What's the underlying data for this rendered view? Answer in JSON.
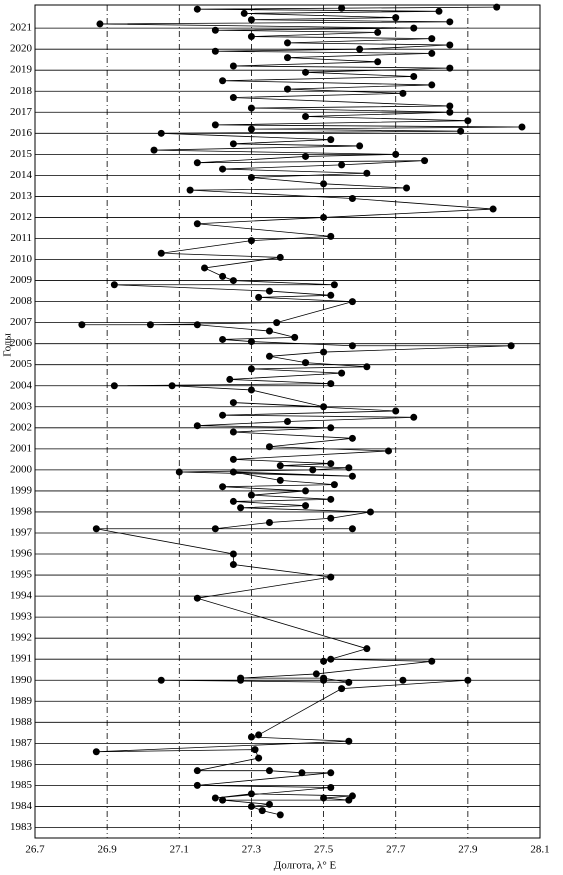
{
  "chart_data": {
    "type": "scatter-line",
    "x_label": "Долгота, λ° E",
    "y_label": "Годы",
    "color": "#000000",
    "x_grid": true,
    "y_grid": true,
    "xlim": [
      26.7,
      28.1
    ],
    "xticks": [
      26.7,
      26.9,
      27.1,
      27.3,
      27.5,
      27.7,
      27.9,
      28.1
    ],
    "ylim": [
      1982.5,
      2022.1
    ],
    "yticks": [
      1983,
      1984,
      1985,
      1986,
      1987,
      1988,
      1989,
      1990,
      1991,
      1992,
      1993,
      1994,
      1995,
      1996,
      1997,
      1998,
      1999,
      2000,
      2001,
      2002,
      2003,
      2004,
      2005,
      2006,
      2007,
      2008,
      2009,
      2010,
      2011,
      2012,
      2013,
      2014,
      2015,
      2016,
      2017,
      2018,
      2019,
      2020,
      2021
    ],
    "x": [
      27.38,
      27.33,
      27.3,
      27.35,
      27.22,
      27.57,
      27.5,
      27.58,
      27.3,
      27.2,
      27.52,
      27.15,
      27.52,
      27.44,
      27.35,
      27.15,
      27.32,
      27.31,
      26.87,
      27.57,
      27.3,
      27.32,
      27.55,
      27.9,
      27.72,
      27.5,
      27.27,
      27.05,
      27.57,
      27.5,
      27.27,
      27.48,
      27.8,
      27.52,
      27.5,
      27.62,
      27.15,
      27.52,
      27.25,
      27.25,
      26.87,
      27.58,
      27.2,
      27.35,
      27.52,
      27.63,
      27.27,
      27.45,
      27.25,
      27.52,
      27.3,
      27.45,
      27.22,
      27.53,
      27.38,
      27.25,
      27.58,
      27.1,
      27.47,
      27.57,
      27.38,
      27.52,
      27.25,
      27.68,
      27.35,
      27.58,
      27.25,
      27.52,
      27.15,
      27.4,
      27.75,
      27.22,
      27.7,
      27.25,
      27.5,
      27.3,
      27.08,
      26.92,
      27.52,
      27.24,
      27.55,
      27.3,
      27.62,
      27.45,
      27.35,
      27.5,
      28.02,
      27.58,
      27.3,
      27.22,
      27.42,
      27.35,
      27.15,
      26.83,
      27.02,
      27.37,
      27.58,
      27.32,
      27.52,
      27.35,
      26.92,
      27.53,
      27.25,
      27.22,
      27.17,
      27.38,
      27.05,
      27.3,
      27.52,
      27.15,
      27.5,
      27.97,
      27.58,
      27.13,
      27.73,
      27.5,
      27.3,
      27.62,
      27.22,
      27.55,
      27.78,
      27.15,
      27.45,
      27.7,
      27.03,
      27.6,
      27.25,
      27.52,
      27.05,
      27.88,
      27.3,
      28.05,
      27.2,
      27.9,
      27.45,
      27.85,
      27.3,
      27.85,
      27.25,
      27.72,
      27.4,
      27.8,
      27.22,
      27.75,
      27.45,
      27.85,
      27.25,
      27.65,
      27.4,
      27.8,
      27.2,
      27.6,
      27.85,
      27.4,
      27.8,
      27.3,
      27.65,
      27.2,
      27.75,
      26.88,
      27.85,
      27.3,
      27.7,
      27.28,
      27.82,
      27.15,
      27.98,
      27.55
    ],
    "values": [
      1983.6,
      1983.8,
      1984.0,
      1984.1,
      1984.3,
      1984.3,
      1984.4,
      1984.5,
      1984.6,
      1984.4,
      1984.9,
      1985.0,
      1985.6,
      1985.6,
      1985.7,
      1985.7,
      1986.3,
      1986.7,
      1986.6,
      1987.1,
      1987.3,
      1987.4,
      1989.6,
      1990.0,
      1990.0,
      1990.0,
      1990.0,
      1990.0,
      1989.9,
      1990.1,
      1990.1,
      1990.3,
      1990.9,
      1991.0,
      1990.9,
      1991.5,
      1993.9,
      1994.9,
      1995.5,
      1996.0,
      1997.2,
      1997.2,
      1997.2,
      1997.5,
      1997.7,
      1998.0,
      1998.2,
      1998.3,
      1998.5,
      1998.6,
      1998.8,
      1999.0,
      1999.2,
      1999.3,
      1999.5,
      1999.9,
      1999.7,
      1999.9,
      2000.0,
      2000.1,
      2000.2,
      2000.3,
      2000.5,
      2000.9,
      2001.1,
      2001.5,
      2001.8,
      2002.0,
      2002.1,
      2002.3,
      2002.5,
      2002.6,
      2002.8,
      2003.2,
      2003.0,
      2003.8,
      2004.0,
      2004.0,
      2004.1,
      2004.3,
      2004.6,
      2004.8,
      2004.9,
      2005.1,
      2005.4,
      2005.6,
      2005.9,
      2005.9,
      2006.1,
      2006.2,
      2006.3,
      2006.6,
      2006.9,
      2006.9,
      2006.9,
      2007.0,
      2008.0,
      2008.2,
      2008.3,
      2008.5,
      2008.8,
      2008.8,
      2009.0,
      2009.2,
      2009.6,
      2010.1,
      2010.3,
      2010.9,
      2011.1,
      2011.7,
      2012.0,
      2012.4,
      2012.9,
      2013.3,
      2013.4,
      2013.6,
      2013.9,
      2014.1,
      2014.3,
      2014.5,
      2014.7,
      2014.6,
      2014.9,
      2015.0,
      2015.2,
      2015.4,
      2015.5,
      2015.7,
      2016.0,
      2016.1,
      2016.2,
      2016.3,
      2016.4,
      2016.6,
      2016.8,
      2017.0,
      2017.2,
      2017.3,
      2017.7,
      2017.9,
      2018.1,
      2018.3,
      2018.5,
      2018.7,
      2018.9,
      2019.1,
      2019.2,
      2019.4,
      2019.6,
      2019.8,
      2019.9,
      2020.0,
      2020.2,
      2020.3,
      2020.5,
      2020.6,
      2020.8,
      2020.9,
      2021.0,
      2021.2,
      2021.3,
      2021.4,
      2021.5,
      2021.7,
      2021.8,
      2021.9,
      2022.0,
      2021.95
    ]
  }
}
